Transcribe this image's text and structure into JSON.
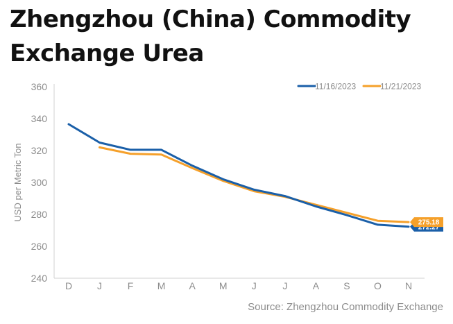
{
  "title": "Zhengzhou (China) Commodity Exchange Urea",
  "source": "Source: Zhengzhou Commodity Exchange",
  "chart_data": {
    "type": "line",
    "title": "Zhengzhou (China) Commodity Exchange Urea",
    "ylabel": "USD per Metric Ton",
    "xlabel": "",
    "categories": [
      "D",
      "J",
      "F",
      "M",
      "A",
      "M",
      "J",
      "J",
      "A",
      "S",
      "O",
      "N"
    ],
    "ylim": [
      240,
      360
    ],
    "yticks": [
      240,
      260,
      280,
      300,
      320,
      340,
      360
    ],
    "grid": false,
    "legend_position": "top-right",
    "series": [
      {
        "name": "11/16/2023",
        "color": "#1a5fa8",
        "values": [
          336.5,
          325,
          320.5,
          320.5,
          310.5,
          302,
          295.5,
          291.5,
          285,
          279.5,
          273.5,
          272.27
        ],
        "end_label": "272.27"
      },
      {
        "name": "11/21/2023",
        "color": "#f5a02a",
        "values": [
          null,
          322,
          318,
          317.5,
          309,
          301,
          294.5,
          291,
          286,
          281,
          276,
          275.18
        ],
        "end_label": "275.18"
      }
    ]
  }
}
